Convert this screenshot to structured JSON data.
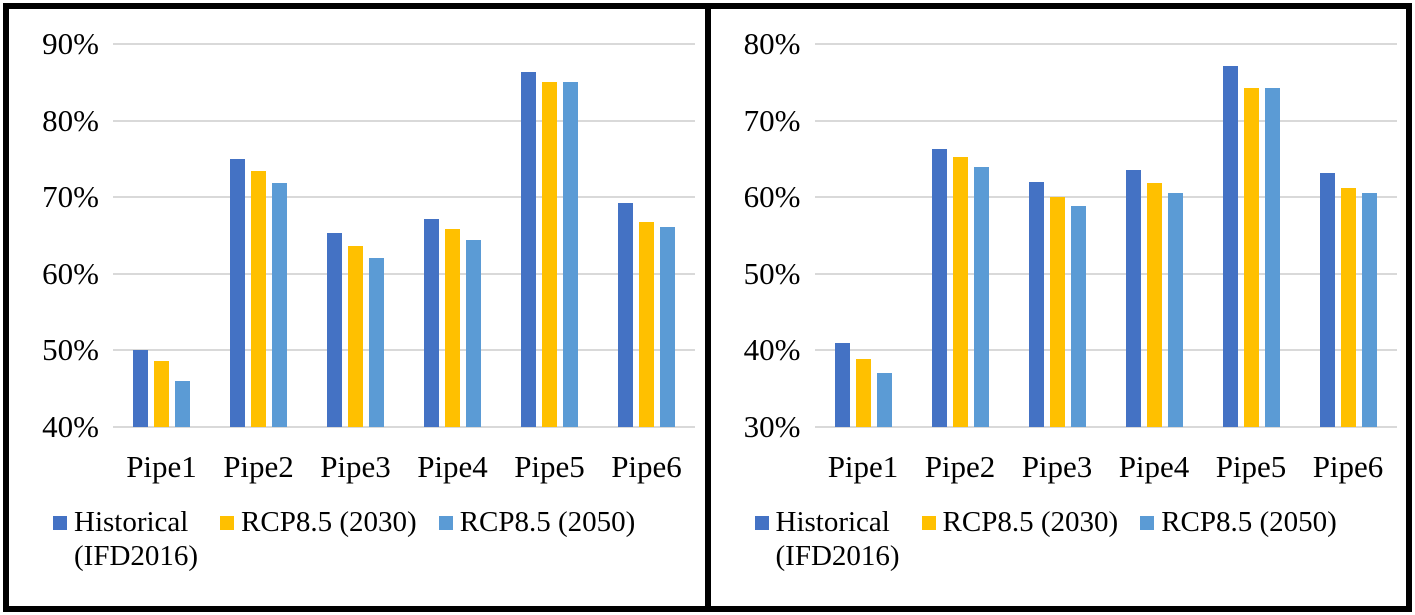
{
  "page": {
    "background": "#FFFFFF",
    "border_color": "#000000",
    "grid_color": "#D9D9D9",
    "text_color": "#000000"
  },
  "chart_data": [
    {
      "type": "bar",
      "panel": "left",
      "title": "",
      "xlabel": "",
      "ylabel": "",
      "categories": [
        "Pipe1",
        "Pipe2",
        "Pipe3",
        "Pipe4",
        "Pipe5",
        "Pipe6"
      ],
      "series": [
        {
          "name": "Historical (IFD2016)",
          "legend_label": "Historical\n(IFD2016)",
          "color": "#4472C4",
          "values": [
            50.0,
            75.0,
            65.3,
            67.2,
            86.4,
            69.3
          ]
        },
        {
          "name": "RCP8.5 (2030)",
          "legend_label": "RCP8.5 (2030)",
          "color": "#FFC000",
          "values": [
            48.6,
            73.4,
            63.6,
            65.8,
            85.1,
            66.8
          ]
        },
        {
          "name": "RCP8.5 (2050)",
          "legend_label": "RCP8.5 (2050)",
          "color": "#5B9BD5",
          "values": [
            46.0,
            71.9,
            62.0,
            64.4,
            85.1,
            66.1
          ]
        }
      ],
      "ylim": [
        40,
        90
      ],
      "ytick_step": 10,
      "ytick_labels": [
        "90%",
        "80%",
        "70%",
        "60%",
        "50%",
        "40%"
      ],
      "ytick_suffix": "%",
      "grid": true,
      "legend_position": "bottom-left"
    },
    {
      "type": "bar",
      "panel": "right",
      "title": "",
      "xlabel": "",
      "ylabel": "",
      "categories": [
        "Pipe1",
        "Pipe2",
        "Pipe3",
        "Pipe4",
        "Pipe5",
        "Pipe6"
      ],
      "series": [
        {
          "name": "Historical (IFD2016)",
          "legend_label": "Historical\n(IFD2016)",
          "color": "#4472C4",
          "values": [
            41.0,
            66.3,
            62.0,
            63.5,
            77.1,
            63.2
          ]
        },
        {
          "name": "RCP8.5 (2030)",
          "legend_label": "RCP8.5 (2030)",
          "color": "#FFC000",
          "values": [
            38.9,
            65.2,
            60.0,
            61.8,
            74.3,
            61.2
          ]
        },
        {
          "name": "RCP8.5 (2050)",
          "legend_label": "RCP8.5 (2050)",
          "color": "#5B9BD5",
          "values": [
            37.0,
            63.9,
            58.8,
            60.5,
            74.2,
            60.5
          ]
        }
      ],
      "ylim": [
        30,
        80
      ],
      "ytick_step": 10,
      "ytick_labels": [
        "80%",
        "70%",
        "60%",
        "50%",
        "40%",
        "30%"
      ],
      "ytick_suffix": "%",
      "grid": true,
      "legend_position": "bottom-left"
    }
  ]
}
